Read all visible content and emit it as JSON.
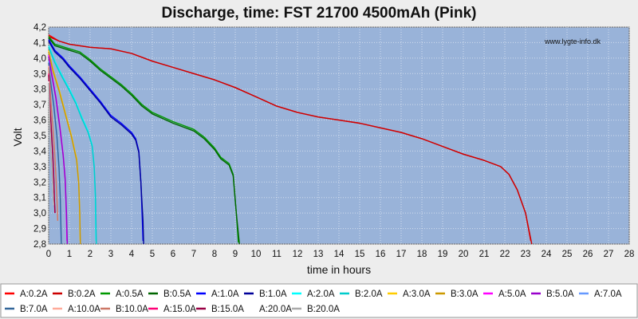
{
  "chart_data": {
    "type": "line",
    "title": "Discharge, time: FST 21700 4500mAh (Pink)",
    "xlabel": "time in hours",
    "ylabel": "Volt",
    "watermark": "www.lygte-info.dk",
    "xlim": [
      0,
      28
    ],
    "ylim": [
      2.8,
      4.2
    ],
    "xticks": [
      "0",
      "1",
      "2",
      "3",
      "4",
      "5",
      "6",
      "7",
      "8",
      "9",
      "10",
      "11",
      "12",
      "13",
      "14",
      "15",
      "16",
      "17",
      "18",
      "19",
      "20",
      "21",
      "22",
      "23",
      "24",
      "25",
      "26",
      "27",
      "28"
    ],
    "yticks": [
      "2,8",
      "2,9",
      "3,0",
      "3,1",
      "3,2",
      "3,3",
      "3,4",
      "3,5",
      "3,6",
      "3,7",
      "3,8",
      "3,9",
      "4,0",
      "4,1",
      "4,2"
    ],
    "grid": true,
    "plot_background": "#99b3d9",
    "legend_position": "bottom",
    "series": [
      {
        "name": "A:0.2A",
        "color": "#ff0000",
        "points": [
          [
            0,
            4.15
          ],
          [
            0.5,
            4.11
          ],
          [
            1,
            4.09
          ],
          [
            2,
            4.07
          ],
          [
            3,
            4.06
          ],
          [
            4,
            4.03
          ],
          [
            5,
            3.98
          ],
          [
            6,
            3.94
          ],
          [
            7,
            3.9
          ],
          [
            8,
            3.86
          ],
          [
            9,
            3.81
          ],
          [
            10,
            3.75
          ],
          [
            11,
            3.69
          ],
          [
            12,
            3.65
          ],
          [
            13,
            3.62
          ],
          [
            14,
            3.6
          ],
          [
            15,
            3.58
          ],
          [
            16,
            3.55
          ],
          [
            17,
            3.52
          ],
          [
            18,
            3.48
          ],
          [
            19,
            3.43
          ],
          [
            20,
            3.38
          ],
          [
            21,
            3.34
          ],
          [
            21.8,
            3.3
          ],
          [
            22.2,
            3.25
          ],
          [
            22.6,
            3.15
          ],
          [
            23.0,
            3.0
          ],
          [
            23.25,
            2.82
          ]
        ]
      },
      {
        "name": "B:0.2A",
        "color": "#cc0000",
        "points": [
          [
            0,
            4.14
          ],
          [
            0.5,
            4.11
          ],
          [
            1,
            4.09
          ],
          [
            2,
            4.07
          ],
          [
            3,
            4.06
          ],
          [
            4,
            4.03
          ],
          [
            5,
            3.98
          ],
          [
            6,
            3.94
          ],
          [
            7,
            3.9
          ],
          [
            8,
            3.86
          ],
          [
            9,
            3.81
          ],
          [
            10,
            3.75
          ],
          [
            11,
            3.69
          ],
          [
            12,
            3.65
          ],
          [
            13,
            3.62
          ],
          [
            14,
            3.6
          ],
          [
            15,
            3.58
          ],
          [
            16,
            3.55
          ],
          [
            17,
            3.52
          ],
          [
            18,
            3.48
          ],
          [
            19,
            3.43
          ],
          [
            20,
            3.38
          ],
          [
            21,
            3.34
          ],
          [
            21.8,
            3.3
          ],
          [
            22.2,
            3.25
          ],
          [
            22.6,
            3.15
          ],
          [
            23.0,
            3.0
          ],
          [
            23.3,
            2.8
          ]
        ]
      },
      {
        "name": "A:0.5A",
        "color": "#009900",
        "points": [
          [
            0,
            4.14
          ],
          [
            0.3,
            4.09
          ],
          [
            1,
            4.06
          ],
          [
            1.5,
            4.04
          ],
          [
            2,
            3.99
          ],
          [
            2.5,
            3.93
          ],
          [
            3,
            3.88
          ],
          [
            3.5,
            3.83
          ],
          [
            4,
            3.77
          ],
          [
            4.5,
            3.7
          ],
          [
            5,
            3.65
          ],
          [
            6,
            3.59
          ],
          [
            7,
            3.54
          ],
          [
            7.5,
            3.49
          ],
          [
            8,
            3.42
          ],
          [
            8.3,
            3.36
          ],
          [
            8.7,
            3.32
          ],
          [
            8.9,
            3.25
          ],
          [
            9.05,
            3.0
          ],
          [
            9.15,
            2.81
          ]
        ]
      },
      {
        "name": "B:0.5A",
        "color": "#006600",
        "points": [
          [
            0,
            4.13
          ],
          [
            0.3,
            4.08
          ],
          [
            1,
            4.05
          ],
          [
            1.5,
            4.03
          ],
          [
            2,
            3.98
          ],
          [
            2.5,
            3.92
          ],
          [
            3,
            3.87
          ],
          [
            3.5,
            3.82
          ],
          [
            4,
            3.76
          ],
          [
            4.5,
            3.69
          ],
          [
            5,
            3.64
          ],
          [
            6,
            3.58
          ],
          [
            7,
            3.53
          ],
          [
            7.5,
            3.48
          ],
          [
            8,
            3.41
          ],
          [
            8.3,
            3.35
          ],
          [
            8.7,
            3.31
          ],
          [
            8.9,
            3.24
          ],
          [
            9.05,
            3.0
          ],
          [
            9.2,
            2.8
          ]
        ]
      },
      {
        "name": "A:1.0A",
        "color": "#0000ff",
        "points": [
          [
            0,
            4.12
          ],
          [
            0.3,
            4.05
          ],
          [
            0.7,
            4.0
          ],
          [
            1,
            3.95
          ],
          [
            1.5,
            3.88
          ],
          [
            2,
            3.8
          ],
          [
            2.5,
            3.72
          ],
          [
            3,
            3.63
          ],
          [
            3.5,
            3.58
          ],
          [
            4,
            3.52
          ],
          [
            4.2,
            3.48
          ],
          [
            4.35,
            3.4
          ],
          [
            4.45,
            3.2
          ],
          [
            4.52,
            2.95
          ],
          [
            4.55,
            2.82
          ]
        ]
      },
      {
        "name": "B:1.0A",
        "color": "#000099",
        "points": [
          [
            0,
            4.11
          ],
          [
            0.3,
            4.04
          ],
          [
            0.7,
            3.99
          ],
          [
            1,
            3.94
          ],
          [
            1.5,
            3.87
          ],
          [
            2,
            3.79
          ],
          [
            2.5,
            3.71
          ],
          [
            3,
            3.62
          ],
          [
            3.5,
            3.57
          ],
          [
            4,
            3.51
          ],
          [
            4.2,
            3.47
          ],
          [
            4.35,
            3.39
          ],
          [
            4.45,
            3.19
          ],
          [
            4.55,
            2.95
          ],
          [
            4.58,
            2.8
          ]
        ]
      },
      {
        "name": "A:2.0A",
        "color": "#00ffff",
        "points": [
          [
            0,
            4.08
          ],
          [
            0.3,
            3.98
          ],
          [
            0.6,
            3.9
          ],
          [
            1,
            3.8
          ],
          [
            1.3,
            3.72
          ],
          [
            1.6,
            3.62
          ],
          [
            1.9,
            3.53
          ],
          [
            2.1,
            3.44
          ],
          [
            2.2,
            3.3
          ],
          [
            2.25,
            3.1
          ],
          [
            2.28,
            2.82
          ]
        ]
      },
      {
        "name": "B:2.0A",
        "color": "#00cccc",
        "points": [
          [
            0,
            4.07
          ],
          [
            0.3,
            3.97
          ],
          [
            0.6,
            3.89
          ],
          [
            1,
            3.79
          ],
          [
            1.3,
            3.71
          ],
          [
            1.6,
            3.61
          ],
          [
            1.9,
            3.52
          ],
          [
            2.1,
            3.43
          ],
          [
            2.2,
            3.29
          ],
          [
            2.26,
            3.1
          ],
          [
            2.3,
            2.8
          ]
        ]
      },
      {
        "name": "A:3.0A",
        "color": "#ffcc00",
        "points": [
          [
            0,
            4.05
          ],
          [
            0.2,
            3.93
          ],
          [
            0.5,
            3.8
          ],
          [
            0.8,
            3.65
          ],
          [
            1.1,
            3.5
          ],
          [
            1.35,
            3.35
          ],
          [
            1.45,
            3.2
          ],
          [
            1.5,
            3.0
          ],
          [
            1.52,
            2.82
          ]
        ]
      },
      {
        "name": "B:3.0A",
        "color": "#cc9900",
        "points": [
          [
            0,
            4.04
          ],
          [
            0.2,
            3.92
          ],
          [
            0.5,
            3.79
          ],
          [
            0.8,
            3.64
          ],
          [
            1.1,
            3.49
          ],
          [
            1.35,
            3.34
          ],
          [
            1.45,
            3.19
          ],
          [
            1.5,
            3.0
          ],
          [
            1.53,
            2.8
          ]
        ]
      },
      {
        "name": "A:5.0A",
        "color": "#ff00ff",
        "points": [
          [
            0,
            4.02
          ],
          [
            0.15,
            3.9
          ],
          [
            0.35,
            3.75
          ],
          [
            0.55,
            3.55
          ],
          [
            0.7,
            3.38
          ],
          [
            0.8,
            3.22
          ],
          [
            0.85,
            3.0
          ],
          [
            0.88,
            2.82
          ]
        ]
      },
      {
        "name": "B:5.0A",
        "color": "#9900cc",
        "points": [
          [
            0,
            4.01
          ],
          [
            0.15,
            3.89
          ],
          [
            0.35,
            3.74
          ],
          [
            0.55,
            3.54
          ],
          [
            0.7,
            3.37
          ],
          [
            0.8,
            3.21
          ],
          [
            0.86,
            3.0
          ],
          [
            0.9,
            2.8
          ]
        ]
      },
      {
        "name": "A:7.0A",
        "color": "#6699ff",
        "points": [
          [
            0,
            3.98
          ],
          [
            0.1,
            3.85
          ],
          [
            0.25,
            3.7
          ],
          [
            0.4,
            3.5
          ],
          [
            0.5,
            3.3
          ],
          [
            0.55,
            3.1
          ],
          [
            0.6,
            2.82
          ]
        ]
      },
      {
        "name": "B:7.0A",
        "color": "#336699",
        "points": [
          [
            0,
            3.97
          ],
          [
            0.1,
            3.84
          ],
          [
            0.25,
            3.69
          ],
          [
            0.4,
            3.49
          ],
          [
            0.5,
            3.29
          ],
          [
            0.56,
            3.1
          ],
          [
            0.61,
            2.8
          ]
        ]
      },
      {
        "name": "A:10.0A",
        "color": "#ffaa99",
        "points": [
          [
            0,
            3.95
          ],
          [
            0.08,
            3.78
          ],
          [
            0.18,
            3.6
          ],
          [
            0.28,
            3.42
          ],
          [
            0.35,
            3.25
          ],
          [
            0.4,
            3.1
          ],
          [
            0.43,
            2.95
          ]
        ]
      },
      {
        "name": "B:10.0A",
        "color": "#cc7766",
        "points": [
          [
            0,
            3.94
          ],
          [
            0.08,
            3.77
          ],
          [
            0.18,
            3.59
          ],
          [
            0.28,
            3.41
          ],
          [
            0.35,
            3.24
          ],
          [
            0.4,
            3.09
          ],
          [
            0.44,
            2.95
          ]
        ]
      },
      {
        "name": "A:15.0A",
        "color": "#ff0077",
        "points": [
          [
            0,
            3.9
          ],
          [
            0.06,
            3.7
          ],
          [
            0.14,
            3.52
          ],
          [
            0.2,
            3.38
          ],
          [
            0.25,
            3.22
          ],
          [
            0.28,
            3.08
          ],
          [
            0.3,
            3.0
          ]
        ]
      },
      {
        "name": "B:15.0A",
        "color": "#990044",
        "points": [
          [
            0,
            3.89
          ],
          [
            0.06,
            3.69
          ],
          [
            0.14,
            3.51
          ],
          [
            0.2,
            3.37
          ],
          [
            0.25,
            3.21
          ],
          [
            0.28,
            3.07
          ],
          [
            0.31,
            3.0
          ]
        ]
      },
      {
        "name": "A:20.0A",
        "color": "#ffffff",
        "points": [
          [
            0,
            3.85
          ],
          [
            0.05,
            3.6
          ],
          [
            0.1,
            3.42
          ],
          [
            0.15,
            3.3
          ],
          [
            0.2,
            3.15
          ],
          [
            0.23,
            3.05
          ]
        ]
      },
      {
        "name": "B:20.0A",
        "color": "#aaaaaa",
        "points": [
          [
            0,
            3.84
          ],
          [
            0.05,
            3.59
          ],
          [
            0.1,
            3.41
          ],
          [
            0.15,
            3.29
          ],
          [
            0.2,
            3.14
          ],
          [
            0.24,
            3.05
          ]
        ]
      }
    ]
  }
}
